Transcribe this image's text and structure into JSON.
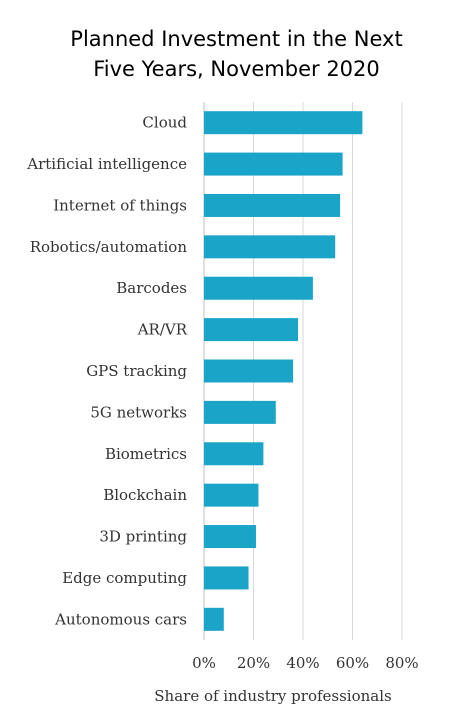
{
  "chart_data": {
    "type": "bar",
    "orientation": "horizontal",
    "title_line1": "Planned Investment in the Next",
    "title_line2": "Five Years, November 2020",
    "xlabel": "Share of industry professionals",
    "ylabel": "",
    "categories": [
      "Cloud",
      "Artificial intelligence",
      "Internet of things",
      "Robotics/automation",
      "Barcodes",
      "AR/VR",
      "GPS tracking",
      "5G networks",
      "Biometrics",
      "Blockchain",
      "3D printing",
      "Edge computing",
      "Autonomous cars"
    ],
    "values": [
      64,
      56,
      55,
      53,
      44,
      38,
      36,
      29,
      24,
      22,
      21,
      18,
      8
    ],
    "xlim": [
      0,
      80
    ],
    "xticks": [
      "0%",
      "20%",
      "40%",
      "60%",
      "80%"
    ],
    "xtick_values": [
      0,
      20,
      40,
      60,
      80
    ],
    "grid": true,
    "bar_color": "#1aa4c8"
  }
}
